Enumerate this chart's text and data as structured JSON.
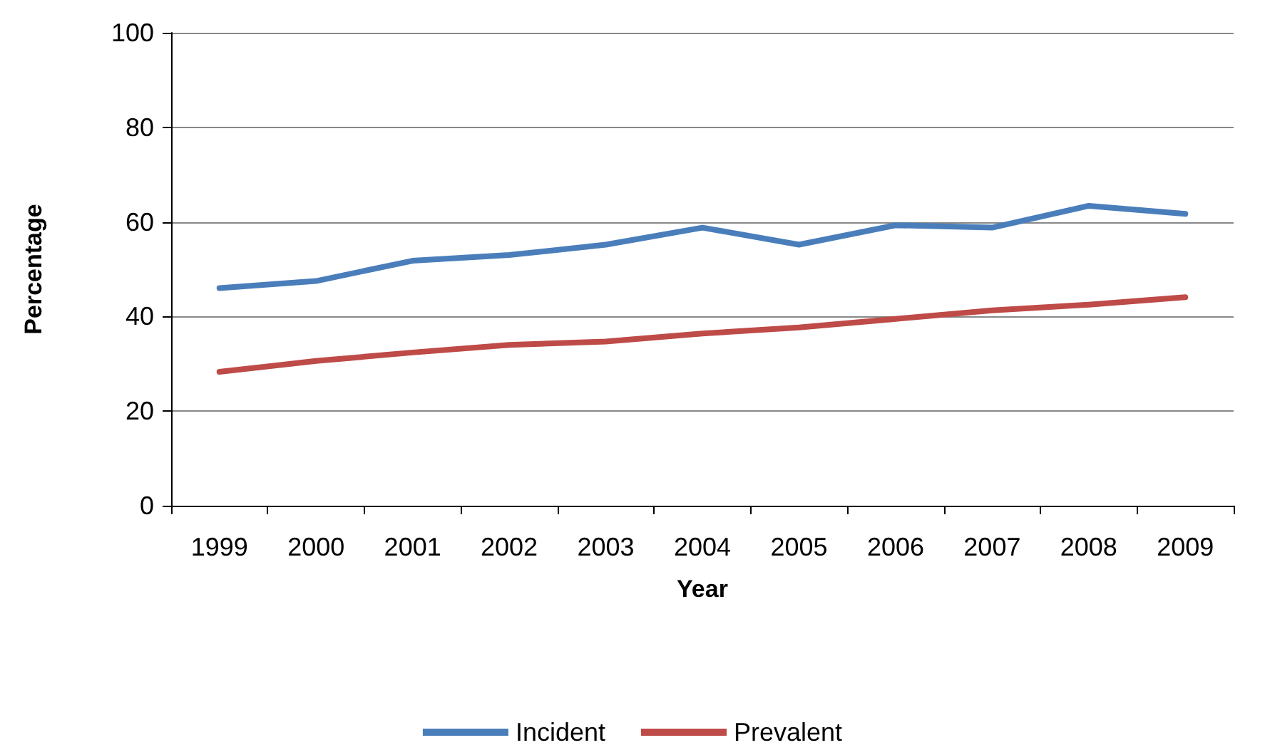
{
  "chart_data": {
    "type": "line",
    "xlabel": "Year",
    "ylabel": "Percentage",
    "categories": [
      "1999",
      "2000",
      "2001",
      "2002",
      "2003",
      "2004",
      "2005",
      "2006",
      "2007",
      "2008",
      "2009"
    ],
    "series": [
      {
        "name": "Incident",
        "color": "#4a7ebb",
        "values": [
          46,
          47.5,
          51.8,
          53,
          55.2,
          58.8,
          55.2,
          59.3,
          58.8,
          63.4,
          61.7
        ]
      },
      {
        "name": "Prevalent",
        "color": "#be4b48",
        "values": [
          28.3,
          30.6,
          32.4,
          34,
          34.7,
          36.4,
          37.7,
          39.5,
          41.3,
          42.5,
          44.1
        ]
      }
    ],
    "ylim": [
      0,
      100
    ],
    "yticks": [
      0,
      20,
      40,
      60,
      80,
      100
    ],
    "grid": "y",
    "legend": "bottom",
    "marker": "none",
    "line_style": "solid"
  }
}
